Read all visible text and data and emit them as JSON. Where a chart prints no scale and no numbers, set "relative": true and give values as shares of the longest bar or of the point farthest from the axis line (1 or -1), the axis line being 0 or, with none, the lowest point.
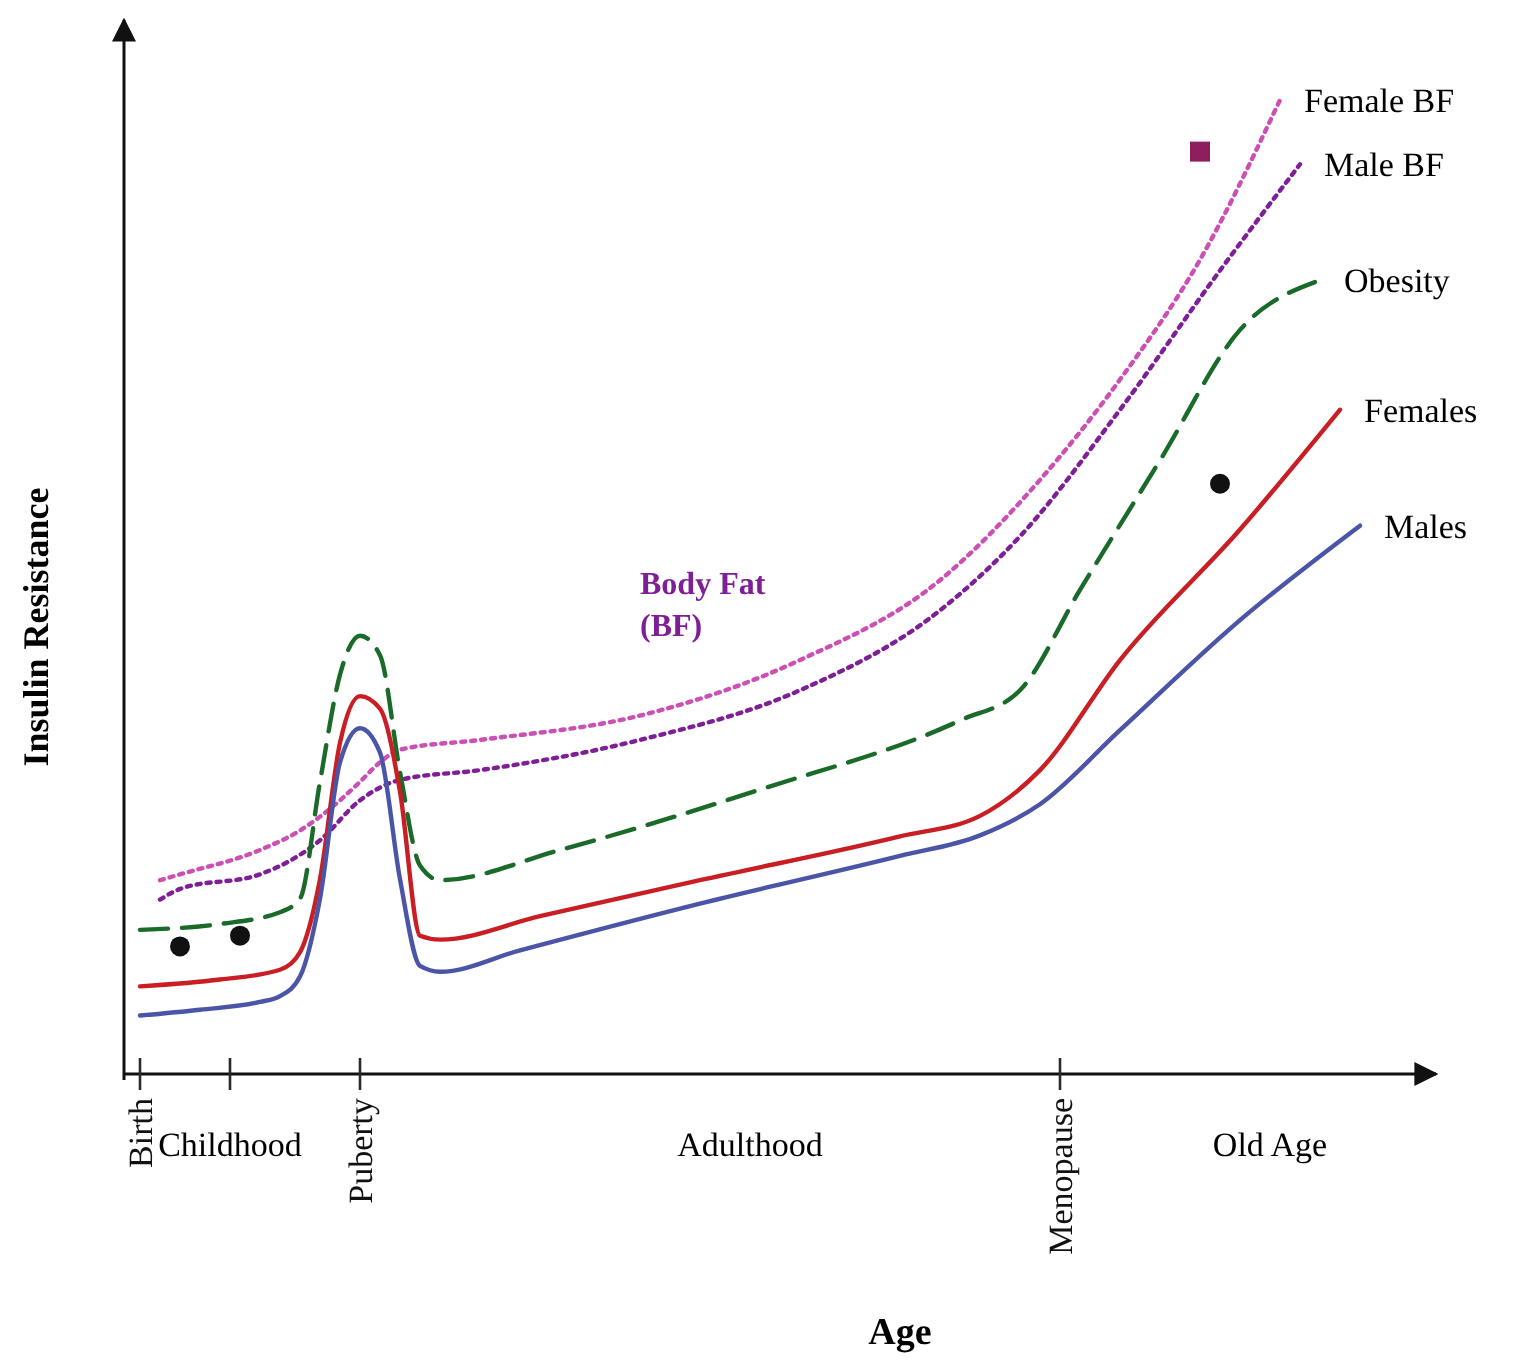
{
  "chart_data": {
    "type": "line",
    "relative": true,
    "xlabel": "Age",
    "ylabel": "Insulin Resistance",
    "categories": [
      "Birth",
      null,
      null,
      null,
      null,
      null,
      null,
      null,
      null,
      null,
      null,
      "Puberty",
      null,
      null,
      null,
      null,
      null,
      null,
      null,
      null,
      null,
      null,
      null,
      null,
      null,
      null,
      null,
      null,
      null,
      null,
      null,
      null,
      null,
      null,
      null,
      null,
      null,
      null,
      null,
      null,
      null,
      null,
      null,
      null,
      null,
      null,
      "Menopause",
      null,
      null,
      null,
      null,
      null,
      null,
      null,
      null,
      null,
      null,
      null,
      null,
      null,
      null,
      null
    ],
    "annotations": [
      "Childhood",
      "Adulthood",
      "Old Age",
      "Body Fat (BF)"
    ],
    "series": [
      {
        "name": "Female BF",
        "color": "#cc4fb4",
        "line_style": "dotted",
        "values": [
          null,
          0.199,
          0.205,
          null,
          null,
          null,
          0.23,
          null,
          0.25,
          null,
          0.281,
          0.3,
          0.32,
          0.333,
          null,
          null,
          null,
          0.343,
          null,
          null,
          null,
          null,
          null,
          null,
          null,
          0.368,
          null,
          null,
          null,
          null,
          null,
          null,
          null,
          0.425,
          null,
          null,
          null,
          null,
          null,
          null,
          0.507,
          null,
          null,
          null,
          null,
          0.61,
          null,
          null,
          null,
          0.713,
          null,
          null,
          null,
          0.836,
          null,
          null,
          null,
          1,
          null,
          null,
          null,
          null
        ]
      },
      {
        "name": "Male BF",
        "color": "#7e1f98",
        "line_style": "dotted",
        "values": [
          null,
          0.179,
          0.19,
          null,
          null,
          null,
          0.205,
          null,
          null,
          0.24,
          null,
          0.281,
          null,
          0.302,
          null,
          null,
          null,
          0.312,
          null,
          null,
          null,
          null,
          null,
          null,
          null,
          0.343,
          null,
          null,
          null,
          null,
          null,
          null,
          null,
          0.394,
          null,
          null,
          null,
          null,
          null,
          null,
          0.476,
          null,
          null,
          null,
          0.552,
          null,
          null,
          null,
          null,
          0.682,
          null,
          null,
          null,
          null,
          0.825,
          null,
          null,
          null,
          0.934,
          null,
          null,
          null
        ]
      },
      {
        "name": "Obesity",
        "color": "#1a6b2a",
        "line_style": "dashed",
        "values": [
          0.148,
          null,
          null,
          null,
          0.154,
          null,
          null,
          0.166,
          0.18,
          0.3,
          0.41,
          0.45,
          0.43,
          0.31,
          0.214,
          0.199,
          null,
          null,
          null,
          null,
          null,
          0.23,
          null,
          null,
          null,
          null,
          null,
          null,
          null,
          null,
          null,
          0.292,
          null,
          null,
          null,
          null,
          null,
          null,
          null,
          null,
          null,
          0.363,
          null,
          null,
          0.394,
          null,
          null,
          0.497,
          null,
          null,
          null,
          0.63,
          null,
          null,
          null,
          0.764,
          null,
          null,
          null,
          0.815,
          null,
          null
        ]
      },
      {
        "name": "Females",
        "color": "#c81e24",
        "line_style": "solid",
        "values": [
          0.09,
          null,
          null,
          null,
          0.097,
          null,
          null,
          0.107,
          0.125,
          0.2,
          0.34,
          0.388,
          0.375,
          0.29,
          0.142,
          0.138,
          null,
          null,
          null,
          null,
          0.162,
          null,
          null,
          null,
          null,
          null,
          null,
          null,
          0.199,
          null,
          null,
          null,
          null,
          null,
          null,
          null,
          null,
          null,
          0.244,
          null,
          null,
          null,
          0.265,
          null,
          null,
          0.312,
          null,
          null,
          null,
          0.425,
          null,
          null,
          null,
          null,
          null,
          0.559,
          null,
          null,
          null,
          null,
          0.682,
          null
        ]
      },
      {
        "name": "Males",
        "color": "#4a55a8",
        "line_style": "solid",
        "values": [
          0.06,
          null,
          null,
          0.066,
          null,
          null,
          0.074,
          0.08,
          0.1,
          0.18,
          0.32,
          0.355,
          0.33,
          0.2,
          0.111,
          0.105,
          null,
          null,
          null,
          0.127,
          null,
          null,
          null,
          null,
          null,
          null,
          null,
          null,
          0.175,
          null,
          null,
          null,
          null,
          null,
          null,
          null,
          null,
          null,
          0.224,
          null,
          null,
          null,
          0.245,
          null,
          null,
          0.277,
          null,
          null,
          null,
          0.353,
          null,
          null,
          null,
          null,
          null,
          0.466,
          null,
          null,
          null,
          null,
          null,
          0.563
        ]
      },
      {
        "type": "scatter",
        "marker": "circle",
        "color": "#111111",
        "values": [
          null,
          null,
          0.131,
          null,
          null,
          0.142,
          null,
          null,
          null,
          null,
          null,
          null,
          null,
          null,
          null,
          null,
          null,
          null,
          null,
          null,
          null,
          null,
          null,
          null,
          null,
          null,
          null,
          null,
          null,
          null,
          null,
          null,
          null,
          null,
          null,
          null,
          null,
          null,
          null,
          null,
          null,
          null,
          null,
          null,
          null,
          null,
          null,
          null,
          null,
          null,
          null,
          null,
          null,
          null,
          0.606,
          null,
          null,
          null,
          null,
          null,
          null,
          null
        ]
      },
      {
        "type": "scatter",
        "marker": "square",
        "color": "#8e1f5e",
        "values": [
          null,
          null,
          null,
          null,
          null,
          null,
          null,
          null,
          null,
          null,
          null,
          null,
          null,
          null,
          null,
          null,
          null,
          null,
          null,
          null,
          null,
          null,
          null,
          null,
          null,
          null,
          null,
          null,
          null,
          null,
          null,
          null,
          null,
          null,
          null,
          null,
          null,
          null,
          null,
          null,
          null,
          null,
          null,
          null,
          null,
          null,
          null,
          null,
          null,
          null,
          null,
          null,
          null,
          0.947,
          null,
          null,
          null,
          null,
          null,
          null,
          null,
          null
        ]
      }
    ]
  }
}
